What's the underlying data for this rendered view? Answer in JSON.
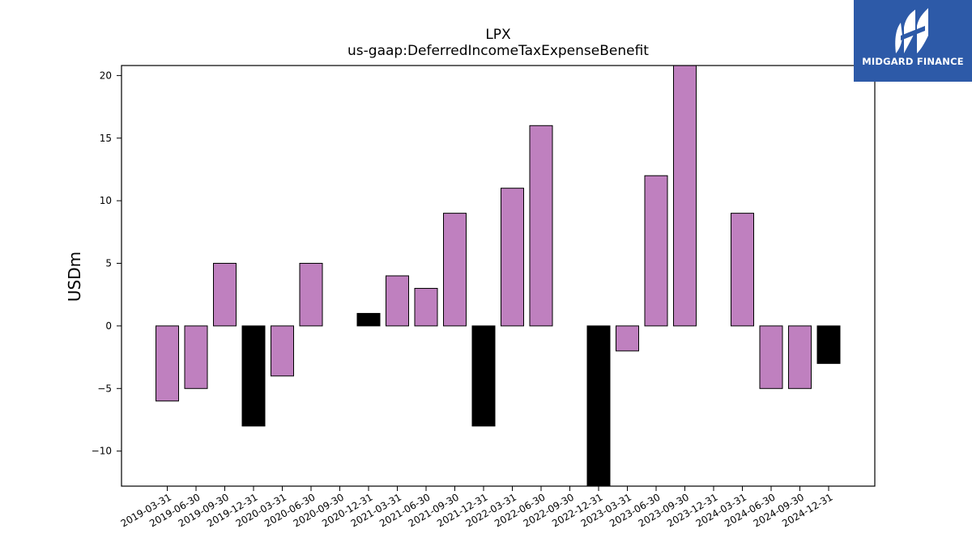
{
  "chart_data": {
    "type": "bar",
    "title": "LPX",
    "subtitle": "us-gaap:DeferredIncomeTaxExpenseBenefit",
    "xlabel": "",
    "ylabel": "USDm",
    "ylim": [
      -12.8,
      20.8
    ],
    "yticks": [
      -10,
      -5,
      0,
      5,
      10,
      15,
      20
    ],
    "ytick_labels": [
      "−10",
      "−5",
      "0",
      "5",
      "10",
      "15",
      "20"
    ],
    "grid": false,
    "categories": [
      "2019-03-31",
      "2019-06-30",
      "2019-09-30",
      "2019-12-31",
      "2020-03-31",
      "2020-06-30",
      "2020-09-30",
      "2020-12-31",
      "2021-03-31",
      "2021-06-30",
      "2021-09-30",
      "2021-12-31",
      "2022-03-31",
      "2022-06-30",
      "2022-09-30",
      "2022-12-31",
      "2023-03-31",
      "2023-06-30",
      "2023-09-30",
      "2023-12-31",
      "2024-03-31",
      "2024-06-30",
      "2024-09-30",
      "2024-12-31"
    ],
    "values": [
      -6,
      -5,
      5,
      -8,
      -4,
      5,
      0,
      1,
      4,
      3,
      9,
      -8,
      11,
      16,
      0,
      -13,
      -2,
      12,
      21,
      0,
      9,
      -5,
      -5,
      -3
    ],
    "bar_colors": [
      "#bf80bf",
      "#bf80bf",
      "#bf80bf",
      "#000000",
      "#bf80bf",
      "#bf80bf",
      "#bf80bf",
      "#000000",
      "#bf80bf",
      "#bf80bf",
      "#bf80bf",
      "#000000",
      "#bf80bf",
      "#bf80bf",
      "#bf80bf",
      "#000000",
      "#bf80bf",
      "#bf80bf",
      "#bf80bf",
      "#000000",
      "#bf80bf",
      "#bf80bf",
      "#bf80bf",
      "#000000"
    ]
  },
  "logo": {
    "text": "MIDGARD FINANCE",
    "background": "#2d5aa8",
    "icon": "midgard-logo-icon"
  }
}
